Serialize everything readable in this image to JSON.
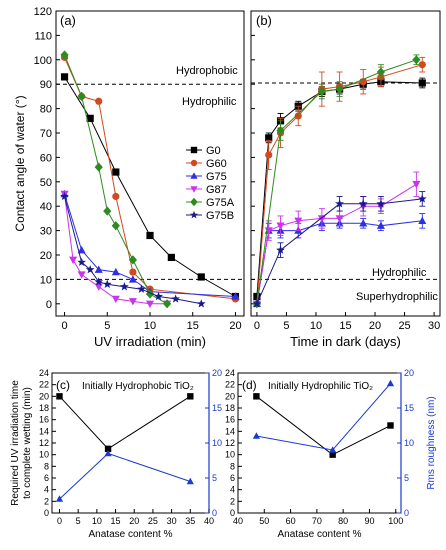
{
  "colors": {
    "G0": "#000000",
    "G60": "#d14a1f",
    "G75": "#2e2ee6",
    "G87": "#cc33ee",
    "G75A": "#2e8b1f",
    "G75B": "#1a1a8c",
    "blue_series": "#1a3ad1"
  },
  "chart_data": [
    {
      "panel": "(a)",
      "type": "line",
      "xlabel": "UV irradiation (min)",
      "ylabel": "Contact angle of water (°)",
      "xlim": [
        -1,
        21
      ],
      "ylim": [
        -5,
        120
      ],
      "xticks": [
        "0",
        "5",
        "10",
        "15",
        "20"
      ],
      "yticks": [
        "0",
        "10",
        "20",
        "30",
        "40",
        "50",
        "60",
        "70",
        "80",
        "90",
        "100",
        "110",
        "120"
      ],
      "reference_lines": [
        90,
        10
      ],
      "annotations": [
        "Hydrophobic",
        "Hydrophilic"
      ],
      "legend": [
        "G0",
        "G60",
        "G75",
        "G87",
        "G75A",
        "G75B"
      ],
      "series": [
        {
          "name": "G0",
          "marker": "square",
          "x": [
            0,
            3,
            6,
            10,
            12.5,
            16,
            20
          ],
          "y": [
            93,
            76,
            54,
            28,
            19,
            11,
            3
          ]
        },
        {
          "name": "G60",
          "marker": "circle",
          "x": [
            0,
            2,
            4,
            6,
            8,
            10,
            20
          ],
          "y": [
            101,
            85,
            83,
            44,
            13,
            6,
            2
          ]
        },
        {
          "name": "G75",
          "marker": "triangle-up",
          "x": [
            0,
            2,
            4,
            6,
            8,
            10,
            20
          ],
          "y": [
            45,
            22,
            14,
            13,
            10,
            5,
            3
          ]
        },
        {
          "name": "G87",
          "marker": "triangle-down",
          "x": [
            0,
            1,
            2,
            4,
            6,
            8,
            10,
            12
          ],
          "y": [
            45,
            18,
            12,
            7,
            2,
            1,
            0,
            0
          ]
        },
        {
          "name": "G75A",
          "marker": "diamond",
          "x": [
            0,
            2,
            4,
            5,
            6,
            8,
            10,
            12
          ],
          "y": [
            102,
            85,
            56,
            38,
            32,
            18,
            4,
            0
          ]
        },
        {
          "name": "G75B",
          "marker": "star",
          "x": [
            0,
            2,
            3,
            4,
            5,
            7,
            9,
            11,
            13,
            16
          ],
          "y": [
            44,
            17,
            14,
            9,
            8,
            7,
            6,
            3,
            2,
            0
          ]
        }
      ]
    },
    {
      "panel": "(b)",
      "type": "line",
      "xlabel": "Time in dark (days)",
      "xlim": [
        -1,
        31
      ],
      "ylim": [
        -5,
        120
      ],
      "xticks": [
        "0",
        "5",
        "10",
        "15",
        "20",
        "25",
        "30"
      ],
      "reference_lines": [
        90.5,
        10
      ],
      "annotations": [
        "Hydrophilic",
        "Superhydrophilic"
      ],
      "series": [
        {
          "name": "G0",
          "x": [
            0,
            2,
            4,
            7,
            11,
            14,
            18,
            21,
            28
          ],
          "y": [
            3,
            68,
            75,
            81,
            87,
            88,
            90,
            91,
            90.5
          ],
          "err": [
            0,
            2,
            3,
            2,
            2,
            2,
            2,
            2,
            2
          ]
        },
        {
          "name": "G60",
          "x": [
            0,
            2,
            4,
            7,
            11,
            14,
            18,
            21,
            28
          ],
          "y": [
            0,
            61,
            70,
            77,
            88,
            89,
            91,
            93,
            98
          ],
          "err": [
            0,
            6,
            6,
            4,
            7,
            6,
            5,
            4,
            3
          ]
        },
        {
          "name": "G75",
          "x": [
            0,
            2,
            4,
            7,
            11,
            14,
            18,
            21,
            28
          ],
          "y": [
            0,
            30,
            30,
            30,
            33,
            33,
            33,
            32,
            34
          ],
          "err": [
            0,
            3,
            3,
            3,
            3,
            2,
            2,
            2,
            3
          ]
        },
        {
          "name": "G87",
          "x": [
            0,
            2,
            4,
            7,
            11,
            14,
            18,
            21,
            27
          ],
          "y": [
            0,
            30,
            32,
            34,
            35,
            35,
            40,
            40,
            49
          ],
          "err": [
            0,
            4,
            4,
            4,
            4,
            3,
            4,
            3,
            5
          ]
        },
        {
          "name": "G75A",
          "x": [
            0,
            4,
            11,
            14,
            21,
            27
          ],
          "y": [
            0,
            71,
            87,
            88,
            95,
            100
          ],
          "err": [
            0,
            4,
            3,
            3,
            3,
            2
          ]
        },
        {
          "name": "G75B",
          "x": [
            0,
            4,
            14,
            18,
            21,
            28
          ],
          "y": [
            0,
            22,
            41,
            41,
            41,
            43
          ],
          "err": [
            0,
            3,
            3,
            3,
            3,
            3
          ]
        }
      ]
    },
    {
      "panel": "(c)",
      "type": "line",
      "title": "Initially Hydrophobic TiO₂",
      "xlabel": "Anatase content %",
      "ylabel": "Required UV irradiation time to complete wetting (min)",
      "xlim": [
        -2,
        40
      ],
      "xticks": [
        "0",
        "5",
        "10",
        "15",
        "20",
        "25",
        "30",
        "35",
        "40"
      ],
      "ylim_left": [
        0,
        24
      ],
      "yticks_left": [
        "0",
        "2",
        "4",
        "6",
        "8",
        "10",
        "12",
        "14",
        "16",
        "18",
        "20",
        "22",
        "24"
      ],
      "ylim_right": [
        0,
        20
      ],
      "yticks_right": [
        "0",
        "5",
        "10",
        "15",
        "20"
      ],
      "series": [
        {
          "name": "UV time",
          "axis": "left",
          "marker": "square",
          "x": [
            0,
            13,
            35
          ],
          "y": [
            20,
            11,
            20
          ]
        },
        {
          "name": "Rms roughness",
          "axis": "right",
          "marker": "triangle-up",
          "x": [
            0,
            13,
            35
          ],
          "y": [
            2,
            8.5,
            4.5
          ]
        }
      ]
    },
    {
      "panel": "(d)",
      "type": "line",
      "title": "Initially Hydrophilic TiO₂",
      "xlabel": "Anatase content %",
      "ylabel_right": "Rms roughness (nm)",
      "xlim": [
        40,
        102
      ],
      "xticks": [
        "40",
        "50",
        "60",
        "70",
        "80",
        "90",
        "100"
      ],
      "ylim_left": [
        0,
        24
      ],
      "yticks_left": [
        "0",
        "2",
        "4",
        "6",
        "8",
        "10",
        "12",
        "14",
        "16",
        "18",
        "20",
        "22",
        "24"
      ],
      "ylim_right": [
        0,
        20
      ],
      "yticks_right": [
        "0",
        "5",
        "10",
        "15",
        "20"
      ],
      "series": [
        {
          "name": "UV time",
          "axis": "left",
          "marker": "square",
          "x": [
            47,
            76,
            98
          ],
          "y": [
            20,
            10,
            15
          ]
        },
        {
          "name": "Rms roughness",
          "axis": "right",
          "marker": "triangle-up",
          "x": [
            47,
            76,
            98
          ],
          "y": [
            11,
            9,
            18.5
          ]
        }
      ]
    }
  ]
}
